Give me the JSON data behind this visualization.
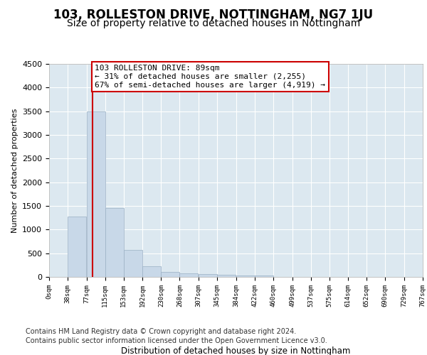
{
  "title": "103, ROLLESTON DRIVE, NOTTINGHAM, NG7 1JU",
  "subtitle": "Size of property relative to detached houses in Nottingham",
  "xlabel": "Distribution of detached houses by size in Nottingham",
  "ylabel": "Number of detached properties",
  "bin_labels": [
    "0sqm",
    "38sqm",
    "77sqm",
    "115sqm",
    "153sqm",
    "192sqm",
    "230sqm",
    "268sqm",
    "307sqm",
    "345sqm",
    "384sqm",
    "422sqm",
    "460sqm",
    "499sqm",
    "537sqm",
    "575sqm",
    "614sqm",
    "652sqm",
    "690sqm",
    "729sqm",
    "767sqm"
  ],
  "bin_edges": [
    0,
    38,
    77,
    115,
    153,
    192,
    230,
    268,
    307,
    345,
    384,
    422,
    460,
    499,
    537,
    575,
    614,
    652,
    690,
    729,
    767
  ],
  "bar_values": [
    5,
    1280,
    3500,
    1460,
    570,
    220,
    110,
    80,
    55,
    40,
    30,
    25,
    5,
    0,
    0,
    0,
    0,
    0,
    0,
    0
  ],
  "bar_color": "#c8d8e8",
  "bar_edge_color": "#9ab0c4",
  "vline_x": 89,
  "vline_color": "#cc0000",
  "ylim": [
    0,
    4500
  ],
  "yticks": [
    0,
    500,
    1000,
    1500,
    2000,
    2500,
    3000,
    3500,
    4000,
    4500
  ],
  "annotation_text": "103 ROLLESTON DRIVE: 89sqm\n← 31% of detached houses are smaller (2,255)\n67% of semi-detached houses are larger (4,919) →",
  "annotation_box_color": "#ffffff",
  "annotation_box_edge": "#cc0000",
  "footnote1": "Contains HM Land Registry data © Crown copyright and database right 2024.",
  "footnote2": "Contains public sector information licensed under the Open Government Licence v3.0.",
  "plot_bg_color": "#dce8f0",
  "title_fontsize": 12,
  "subtitle_fontsize": 10,
  "annotation_fontsize": 8,
  "footnote_fontsize": 7
}
